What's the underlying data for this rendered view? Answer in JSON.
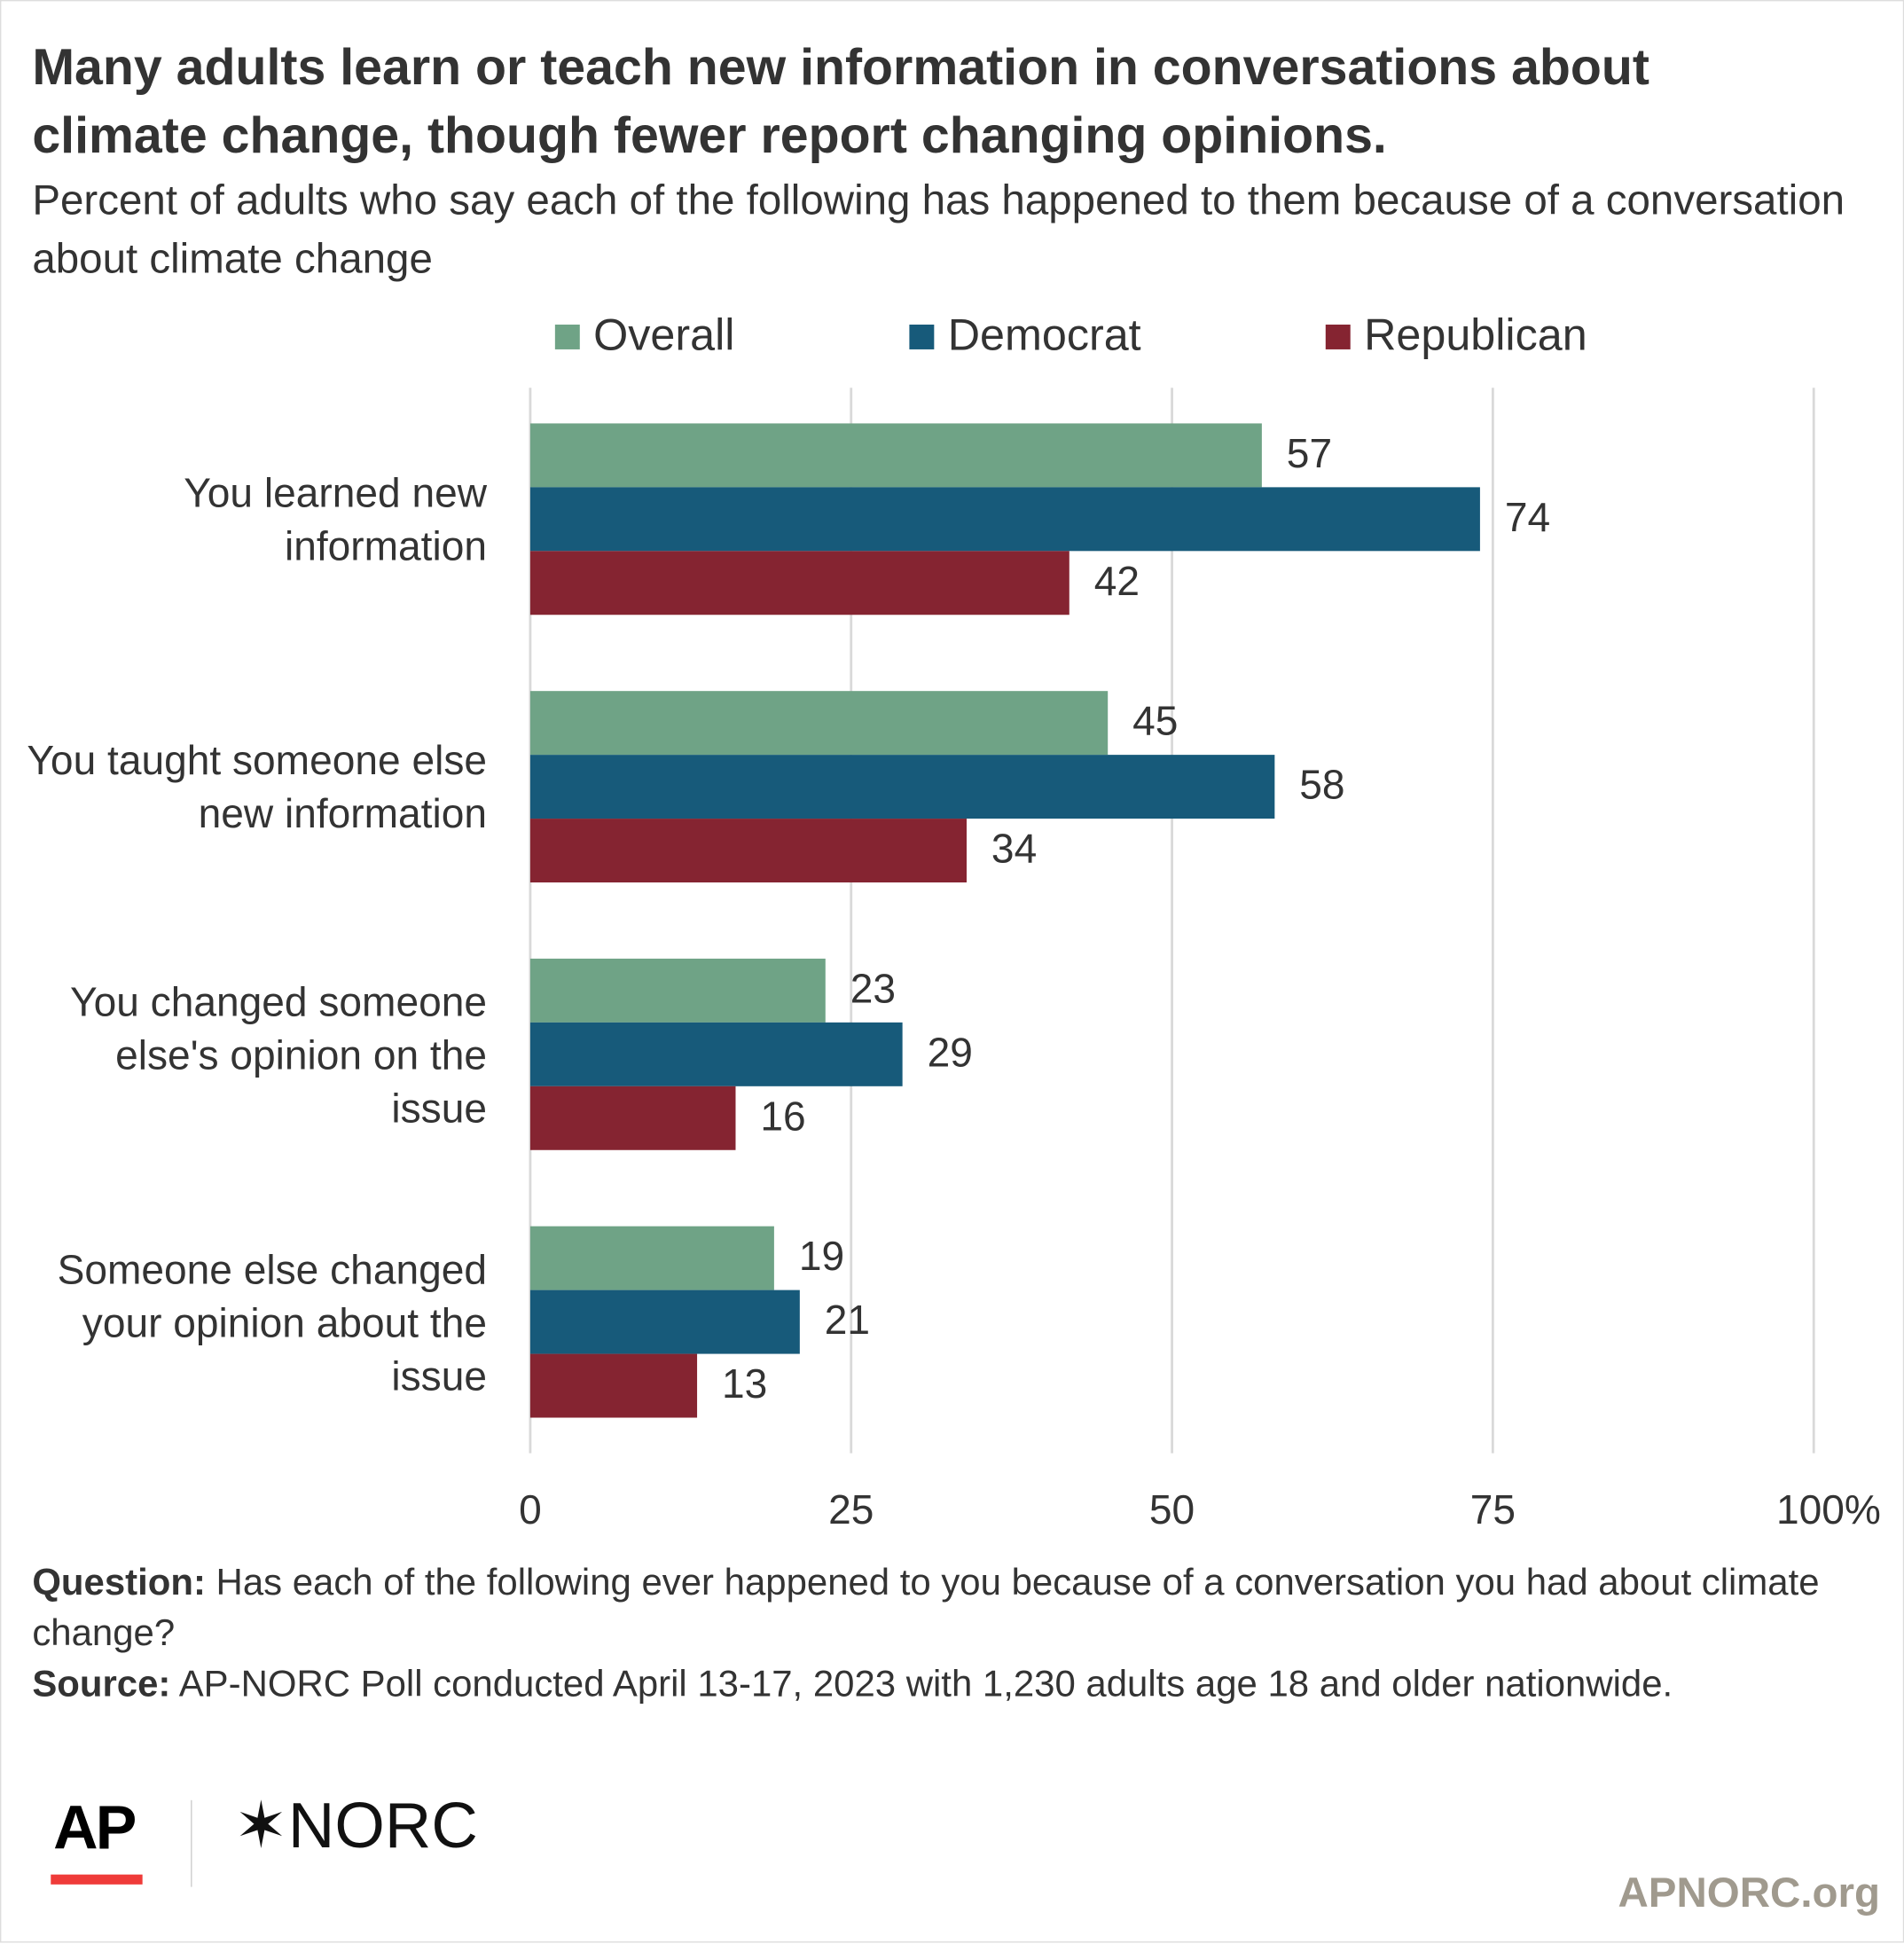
{
  "chart_data": {
    "type": "barh",
    "title": "Many adults learn or teach new information in conversations about climate change, though fewer report changing opinions.",
    "subtitle": "Percent of adults who say each of the following has happened to them because of a conversation about climate change",
    "categories": [
      "You learned new information",
      "You taught someone else new information",
      "You changed someone else's opinion on the issue",
      "Someone else changed your opinion about the issue"
    ],
    "series": [
      {
        "name": "Overall",
        "color": "#6fa386",
        "values": [
          57,
          45,
          23,
          19
        ]
      },
      {
        "name": "Democrat",
        "color": "#175a7a",
        "values": [
          74,
          58,
          29,
          21
        ]
      },
      {
        "name": "Republican",
        "color": "#852431",
        "values": [
          42,
          34,
          16,
          13
        ]
      }
    ],
    "xlim": [
      0,
      100
    ],
    "xticks": [
      0,
      25,
      50,
      75,
      {
        "value": 100,
        "label": "100%"
      }
    ],
    "grid": true,
    "legend": "top"
  },
  "footer": {
    "question": {
      "label": "Question:",
      "text": "Has each of the following ever happened to you because of a conversation you had about climate change?"
    },
    "source": {
      "label": "Source:",
      "text": "AP-NORC Poll conducted April 13-17, 2023 with 1,230 adults age 18 and older nationwide."
    },
    "logo_ap": "AP",
    "logo_norc": "✶NORC",
    "website": "APNORC.org"
  }
}
